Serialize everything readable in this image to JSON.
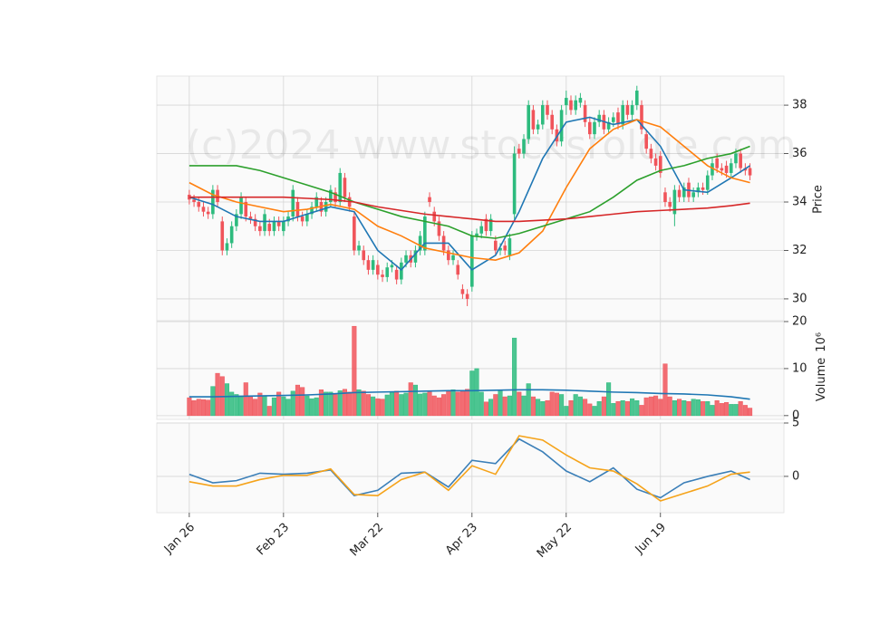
{
  "chart_data": {
    "type": "candlestick",
    "watermark": "(c)2024 www.stocksroldie.com",
    "xlim": [
      -6.9,
      126.2
    ],
    "xticks": [
      {
        "value": 0,
        "label": "Jan 26"
      },
      {
        "value": 20,
        "label": "Feb 23"
      },
      {
        "value": 40,
        "label": "Mar 22"
      },
      {
        "value": 60,
        "label": "Apr 23"
      },
      {
        "value": 80,
        "label": "May 22"
      },
      {
        "value": 100,
        "label": "Jun 19"
      }
    ],
    "grid": true,
    "up_color": "#2dbb7e",
    "down_color": "#f0545a",
    "line_x": [
      0,
      5,
      10,
      15,
      20,
      25,
      30,
      35,
      40,
      45,
      50,
      55,
      60,
      65,
      70,
      75,
      80,
      85,
      90,
      95,
      100,
      105,
      110,
      115,
      119
    ],
    "price": {
      "ylabel": "Price",
      "ylim": [
        29.1,
        39.2
      ],
      "yticks": [
        30,
        32,
        34,
        36,
        38
      ],
      "ohlc": [
        [
          34.3,
          34.5,
          33.9,
          34.1
        ],
        [
          34.1,
          34.3,
          33.8,
          34.0
        ],
        [
          34.0,
          34.2,
          33.6,
          33.8
        ],
        [
          33.8,
          34.0,
          33.4,
          33.6
        ],
        [
          33.6,
          33.8,
          33.3,
          33.5
        ],
        [
          33.5,
          34.7,
          33.3,
          34.5
        ],
        [
          34.5,
          34.7,
          33.8,
          34.0
        ],
        [
          33.2,
          33.4,
          31.8,
          32.0
        ],
        [
          32.0,
          32.5,
          31.8,
          32.3
        ],
        [
          32.3,
          33.2,
          32.1,
          33.0
        ],
        [
          33.0,
          33.7,
          32.8,
          33.5
        ],
        [
          33.5,
          34.4,
          33.3,
          34.2
        ],
        [
          34.0,
          34.2,
          33.2,
          33.4
        ],
        [
          33.4,
          33.6,
          33.1,
          33.3
        ],
        [
          33.3,
          33.5,
          32.8,
          33.0
        ],
        [
          33.0,
          33.2,
          32.6,
          32.8
        ],
        [
          32.8,
          33.7,
          32.6,
          33.5
        ],
        [
          33.1,
          33.3,
          32.6,
          32.8
        ],
        [
          32.8,
          33.4,
          32.6,
          33.2
        ],
        [
          33.2,
          33.4,
          32.8,
          33.0
        ],
        [
          32.8,
          33.4,
          32.6,
          33.2
        ],
        [
          33.2,
          33.6,
          33.0,
          33.4
        ],
        [
          33.4,
          34.7,
          33.2,
          34.5
        ],
        [
          34.0,
          34.2,
          33.2,
          33.4
        ],
        [
          33.4,
          33.6,
          33.0,
          33.2
        ],
        [
          33.2,
          33.7,
          33.0,
          33.5
        ],
        [
          33.5,
          34.0,
          33.3,
          33.8
        ],
        [
          33.8,
          34.4,
          33.6,
          34.2
        ],
        [
          34.0,
          34.2,
          33.4,
          33.6
        ],
        [
          33.6,
          34.2,
          33.4,
          34.0
        ],
        [
          34.0,
          34.7,
          33.8,
          34.5
        ],
        [
          34.4,
          34.6,
          33.8,
          34.0
        ],
        [
          34.0,
          35.4,
          33.8,
          35.2
        ],
        [
          35.0,
          35.2,
          34.0,
          34.2
        ],
        [
          34.2,
          34.4,
          33.6,
          33.8
        ],
        [
          33.4,
          33.6,
          31.8,
          32.0
        ],
        [
          32.0,
          32.4,
          31.8,
          32.2
        ],
        [
          32.0,
          32.2,
          31.4,
          31.6
        ],
        [
          31.6,
          31.8,
          31.0,
          31.2
        ],
        [
          31.2,
          31.8,
          31.0,
          31.6
        ],
        [
          31.4,
          31.6,
          30.8,
          31.0
        ],
        [
          31.0,
          31.2,
          30.7,
          30.9
        ],
        [
          30.9,
          31.5,
          30.7,
          31.3
        ],
        [
          31.3,
          31.6,
          31.1,
          31.4
        ],
        [
          31.2,
          31.4,
          30.6,
          30.8
        ],
        [
          30.8,
          31.7,
          30.6,
          31.5
        ],
        [
          31.5,
          32.0,
          31.3,
          31.8
        ],
        [
          31.8,
          32.0,
          31.3,
          31.5
        ],
        [
          31.5,
          32.2,
          31.3,
          32.0
        ],
        [
          32.0,
          32.8,
          31.8,
          32.6
        ],
        [
          32.0,
          33.6,
          31.8,
          33.4
        ],
        [
          34.2,
          34.4,
          33.8,
          34.0
        ],
        [
          33.6,
          33.8,
          33.0,
          33.2
        ],
        [
          33.2,
          33.4,
          32.4,
          32.6
        ],
        [
          32.6,
          32.8,
          31.8,
          32.0
        ],
        [
          32.0,
          32.2,
          31.4,
          31.6
        ],
        [
          31.6,
          32.0,
          31.4,
          31.8
        ],
        [
          31.4,
          31.6,
          30.8,
          31.0
        ],
        [
          30.4,
          30.6,
          30.0,
          30.2
        ],
        [
          30.2,
          30.4,
          29.7,
          30.0
        ],
        [
          30.5,
          32.8,
          30.3,
          32.6
        ],
        [
          32.6,
          32.9,
          32.4,
          32.7
        ],
        [
          32.7,
          33.2,
          32.5,
          33.0
        ],
        [
          33.3,
          33.5,
          32.6,
          32.8
        ],
        [
          32.8,
          33.5,
          32.6,
          33.3
        ],
        [
          32.4,
          32.6,
          31.8,
          32.0
        ],
        [
          32.0,
          32.3,
          31.8,
          32.1
        ],
        [
          32.2,
          32.4,
          31.8,
          32.0
        ],
        [
          31.8,
          32.7,
          31.6,
          32.5
        ],
        [
          33.5,
          36.3,
          33.3,
          36.0
        ],
        [
          36.2,
          36.4,
          35.8,
          36.0
        ],
        [
          36.0,
          36.8,
          35.8,
          36.6
        ],
        [
          36.6,
          38.2,
          36.4,
          38.0
        ],
        [
          37.8,
          38.0,
          36.8,
          37.0
        ],
        [
          37.0,
          37.4,
          36.8,
          37.2
        ],
        [
          37.2,
          38.2,
          37.0,
          38.0
        ],
        [
          38.0,
          38.2,
          37.4,
          37.6
        ],
        [
          37.6,
          37.8,
          36.8,
          37.0
        ],
        [
          37.0,
          37.2,
          36.3,
          36.5
        ],
        [
          36.5,
          38.0,
          36.3,
          37.8
        ],
        [
          38.0,
          38.6,
          37.6,
          38.3
        ],
        [
          38.2,
          38.4,
          37.6,
          37.8
        ],
        [
          37.8,
          38.4,
          37.6,
          38.2
        ],
        [
          38.1,
          38.5,
          37.9,
          38.3
        ],
        [
          38.0,
          38.2,
          37.1,
          37.3
        ],
        [
          37.3,
          37.5,
          36.6,
          36.8
        ],
        [
          36.8,
          37.5,
          36.6,
          37.3
        ],
        [
          37.3,
          37.8,
          37.1,
          37.6
        ],
        [
          37.6,
          37.8,
          36.8,
          37.0
        ],
        [
          37.0,
          37.5,
          36.8,
          37.3
        ],
        [
          37.3,
          37.7,
          37.1,
          37.5
        ],
        [
          37.7,
          37.9,
          37.0,
          37.2
        ],
        [
          37.2,
          38.2,
          37.0,
          38.0
        ],
        [
          38.0,
          38.2,
          37.4,
          37.6
        ],
        [
          37.6,
          38.2,
          37.4,
          38.0
        ],
        [
          38.0,
          38.8,
          37.8,
          38.6
        ],
        [
          38.0,
          38.2,
          36.8,
          37.0
        ],
        [
          36.8,
          37.0,
          36.0,
          36.2
        ],
        [
          36.2,
          36.4,
          35.6,
          35.8
        ],
        [
          35.8,
          36.0,
          35.3,
          35.5
        ],
        [
          35.9,
          36.1,
          35.0,
          35.2
        ],
        [
          34.4,
          34.6,
          33.8,
          34.0
        ],
        [
          34.0,
          34.2,
          33.6,
          33.8
        ],
        [
          33.5,
          34.7,
          33.0,
          34.5
        ],
        [
          34.5,
          34.7,
          34.0,
          34.2
        ],
        [
          34.2,
          34.8,
          34.0,
          34.6
        ],
        [
          34.8,
          35.0,
          34.0,
          34.2
        ],
        [
          34.2,
          34.6,
          34.0,
          34.4
        ],
        [
          34.4,
          34.8,
          34.2,
          34.6
        ],
        [
          34.6,
          34.8,
          34.3,
          34.5
        ],
        [
          34.5,
          35.3,
          34.3,
          35.1
        ],
        [
          35.1,
          35.8,
          34.9,
          35.6
        ],
        [
          35.8,
          36.0,
          35.2,
          35.4
        ],
        [
          35.4,
          35.6,
          35.1,
          35.3
        ],
        [
          35.5,
          35.7,
          35.0,
          35.2
        ],
        [
          35.2,
          35.8,
          35.0,
          35.6
        ],
        [
          35.6,
          36.2,
          35.4,
          36.0
        ],
        [
          36.0,
          36.2,
          35.2,
          35.4
        ],
        [
          35.4,
          35.6,
          35.1,
          35.3
        ],
        [
          35.4,
          35.6,
          34.9,
          35.1
        ]
      ],
      "series": [
        {
          "color": "#1f77b4",
          "values": [
            34.2,
            33.9,
            33.4,
            33.2,
            33.2,
            33.5,
            33.8,
            33.6,
            32.0,
            31.2,
            32.3,
            32.3,
            31.2,
            31.8,
            33.6,
            35.8,
            37.3,
            37.5,
            37.2,
            37.4,
            36.3,
            34.5,
            34.4,
            35.0,
            35.5
          ]
        },
        {
          "color": "#ff7f0e",
          "values": [
            34.8,
            34.3,
            34.0,
            33.8,
            33.6,
            33.7,
            33.9,
            33.7,
            33.0,
            32.6,
            32.1,
            31.9,
            31.7,
            31.6,
            31.9,
            32.8,
            34.6,
            36.2,
            37.0,
            37.4,
            37.1,
            36.3,
            35.5,
            35.0,
            34.8
          ]
        },
        {
          "color": "#2ca02c",
          "values": [
            35.5,
            35.5,
            35.5,
            35.3,
            35.0,
            34.7,
            34.4,
            34.0,
            33.7,
            33.4,
            33.2,
            33.0,
            32.6,
            32.5,
            32.7,
            33.0,
            33.3,
            33.6,
            34.2,
            34.9,
            35.3,
            35.5,
            35.8,
            36.0,
            36.3
          ]
        },
        {
          "color": "#d62728",
          "values": [
            34.2,
            34.2,
            34.2,
            34.2,
            34.2,
            34.15,
            34.1,
            34.0,
            33.8,
            33.65,
            33.5,
            33.4,
            33.3,
            33.2,
            33.2,
            33.25,
            33.3,
            33.4,
            33.5,
            33.6,
            33.65,
            33.7,
            33.75,
            33.85,
            33.95
          ]
        }
      ]
    },
    "volume": {
      "ylabel": "Volume",
      "exponent": "10⁶",
      "ylim": [
        -0.8,
        20
      ],
      "yticks": [
        0,
        10,
        20
      ],
      "values": [
        3.8,
        3.2,
        3.5,
        3.4,
        3.3,
        6.2,
        9.0,
        8.3,
        6.8,
        5.0,
        4.5,
        4.2,
        7.0,
        4.0,
        3.5,
        4.8,
        4.2,
        2.0,
        3.8,
        5.0,
        4.0,
        3.5,
        5.2,
        6.5,
        6.0,
        4.2,
        3.6,
        3.8,
        5.5,
        5.0,
        5.0,
        4.5,
        5.3,
        5.6,
        5.0,
        19.0,
        5.5,
        5.2,
        4.5,
        4.0,
        3.6,
        3.5,
        4.4,
        5.0,
        5.2,
        4.5,
        4.8,
        7.0,
        6.5,
        4.6,
        4.8,
        5.0,
        4.2,
        3.8,
        4.5,
        5.3,
        5.5,
        5.0,
        5.2,
        5.6,
        9.5,
        10.0,
        5.0,
        2.9,
        3.5,
        4.5,
        5.5,
        4.0,
        4.2,
        16.5,
        5.0,
        4.2,
        6.8,
        4.0,
        3.5,
        3.0,
        3.2,
        5.0,
        4.8,
        4.5,
        2.0,
        3.2,
        4.5,
        4.0,
        3.5,
        2.5,
        2.0,
        3.0,
        4.0,
        7.0,
        2.6,
        3.0,
        3.2,
        3.0,
        3.6,
        3.2,
        2.2,
        3.8,
        4.0,
        4.2,
        3.5,
        11.0,
        4.0,
        3.2,
        3.5,
        3.2,
        3.0,
        3.5,
        3.4,
        3.0,
        3.0,
        2.2,
        3.2,
        2.6,
        2.8,
        2.4,
        2.4,
        3.0,
        2.2,
        1.6
      ],
      "series": [
        {
          "color": "#1f77b4",
          "values": [
            4,
            4,
            4.1,
            4.2,
            4.3,
            4.4,
            4.6,
            4.9,
            5.0,
            5.1,
            5.2,
            5.3,
            5.3,
            5.4,
            5.5,
            5.5,
            5.4,
            5.2,
            5.0,
            4.9,
            4.7,
            4.6,
            4.4,
            4.0,
            3.5
          ]
        }
      ]
    },
    "macd": {
      "ylim": [
        -3.4,
        5.0
      ],
      "yticks": [
        0,
        5
      ],
      "series": [
        {
          "color": "#3b7fb8",
          "values": [
            0.2,
            -0.6,
            -0.4,
            0.3,
            0.2,
            0.3,
            0.6,
            -1.8,
            -1.3,
            0.3,
            0.4,
            -1.0,
            1.5,
            1.2,
            3.5,
            2.3,
            0.5,
            -0.5,
            0.8,
            -1.2,
            -2.0,
            -0.6,
            0.0,
            0.5,
            -0.3
          ]
        },
        {
          "color": "#f5a31a",
          "values": [
            -0.5,
            -0.9,
            -0.9,
            -0.3,
            0.1,
            0.1,
            0.7,
            -1.7,
            -1.8,
            -0.3,
            0.4,
            -1.3,
            1.0,
            0.2,
            3.8,
            3.4,
            2.0,
            0.8,
            0.5,
            -0.7,
            -2.3,
            -1.6,
            -0.9,
            0.2,
            0.4
          ]
        }
      ]
    }
  }
}
